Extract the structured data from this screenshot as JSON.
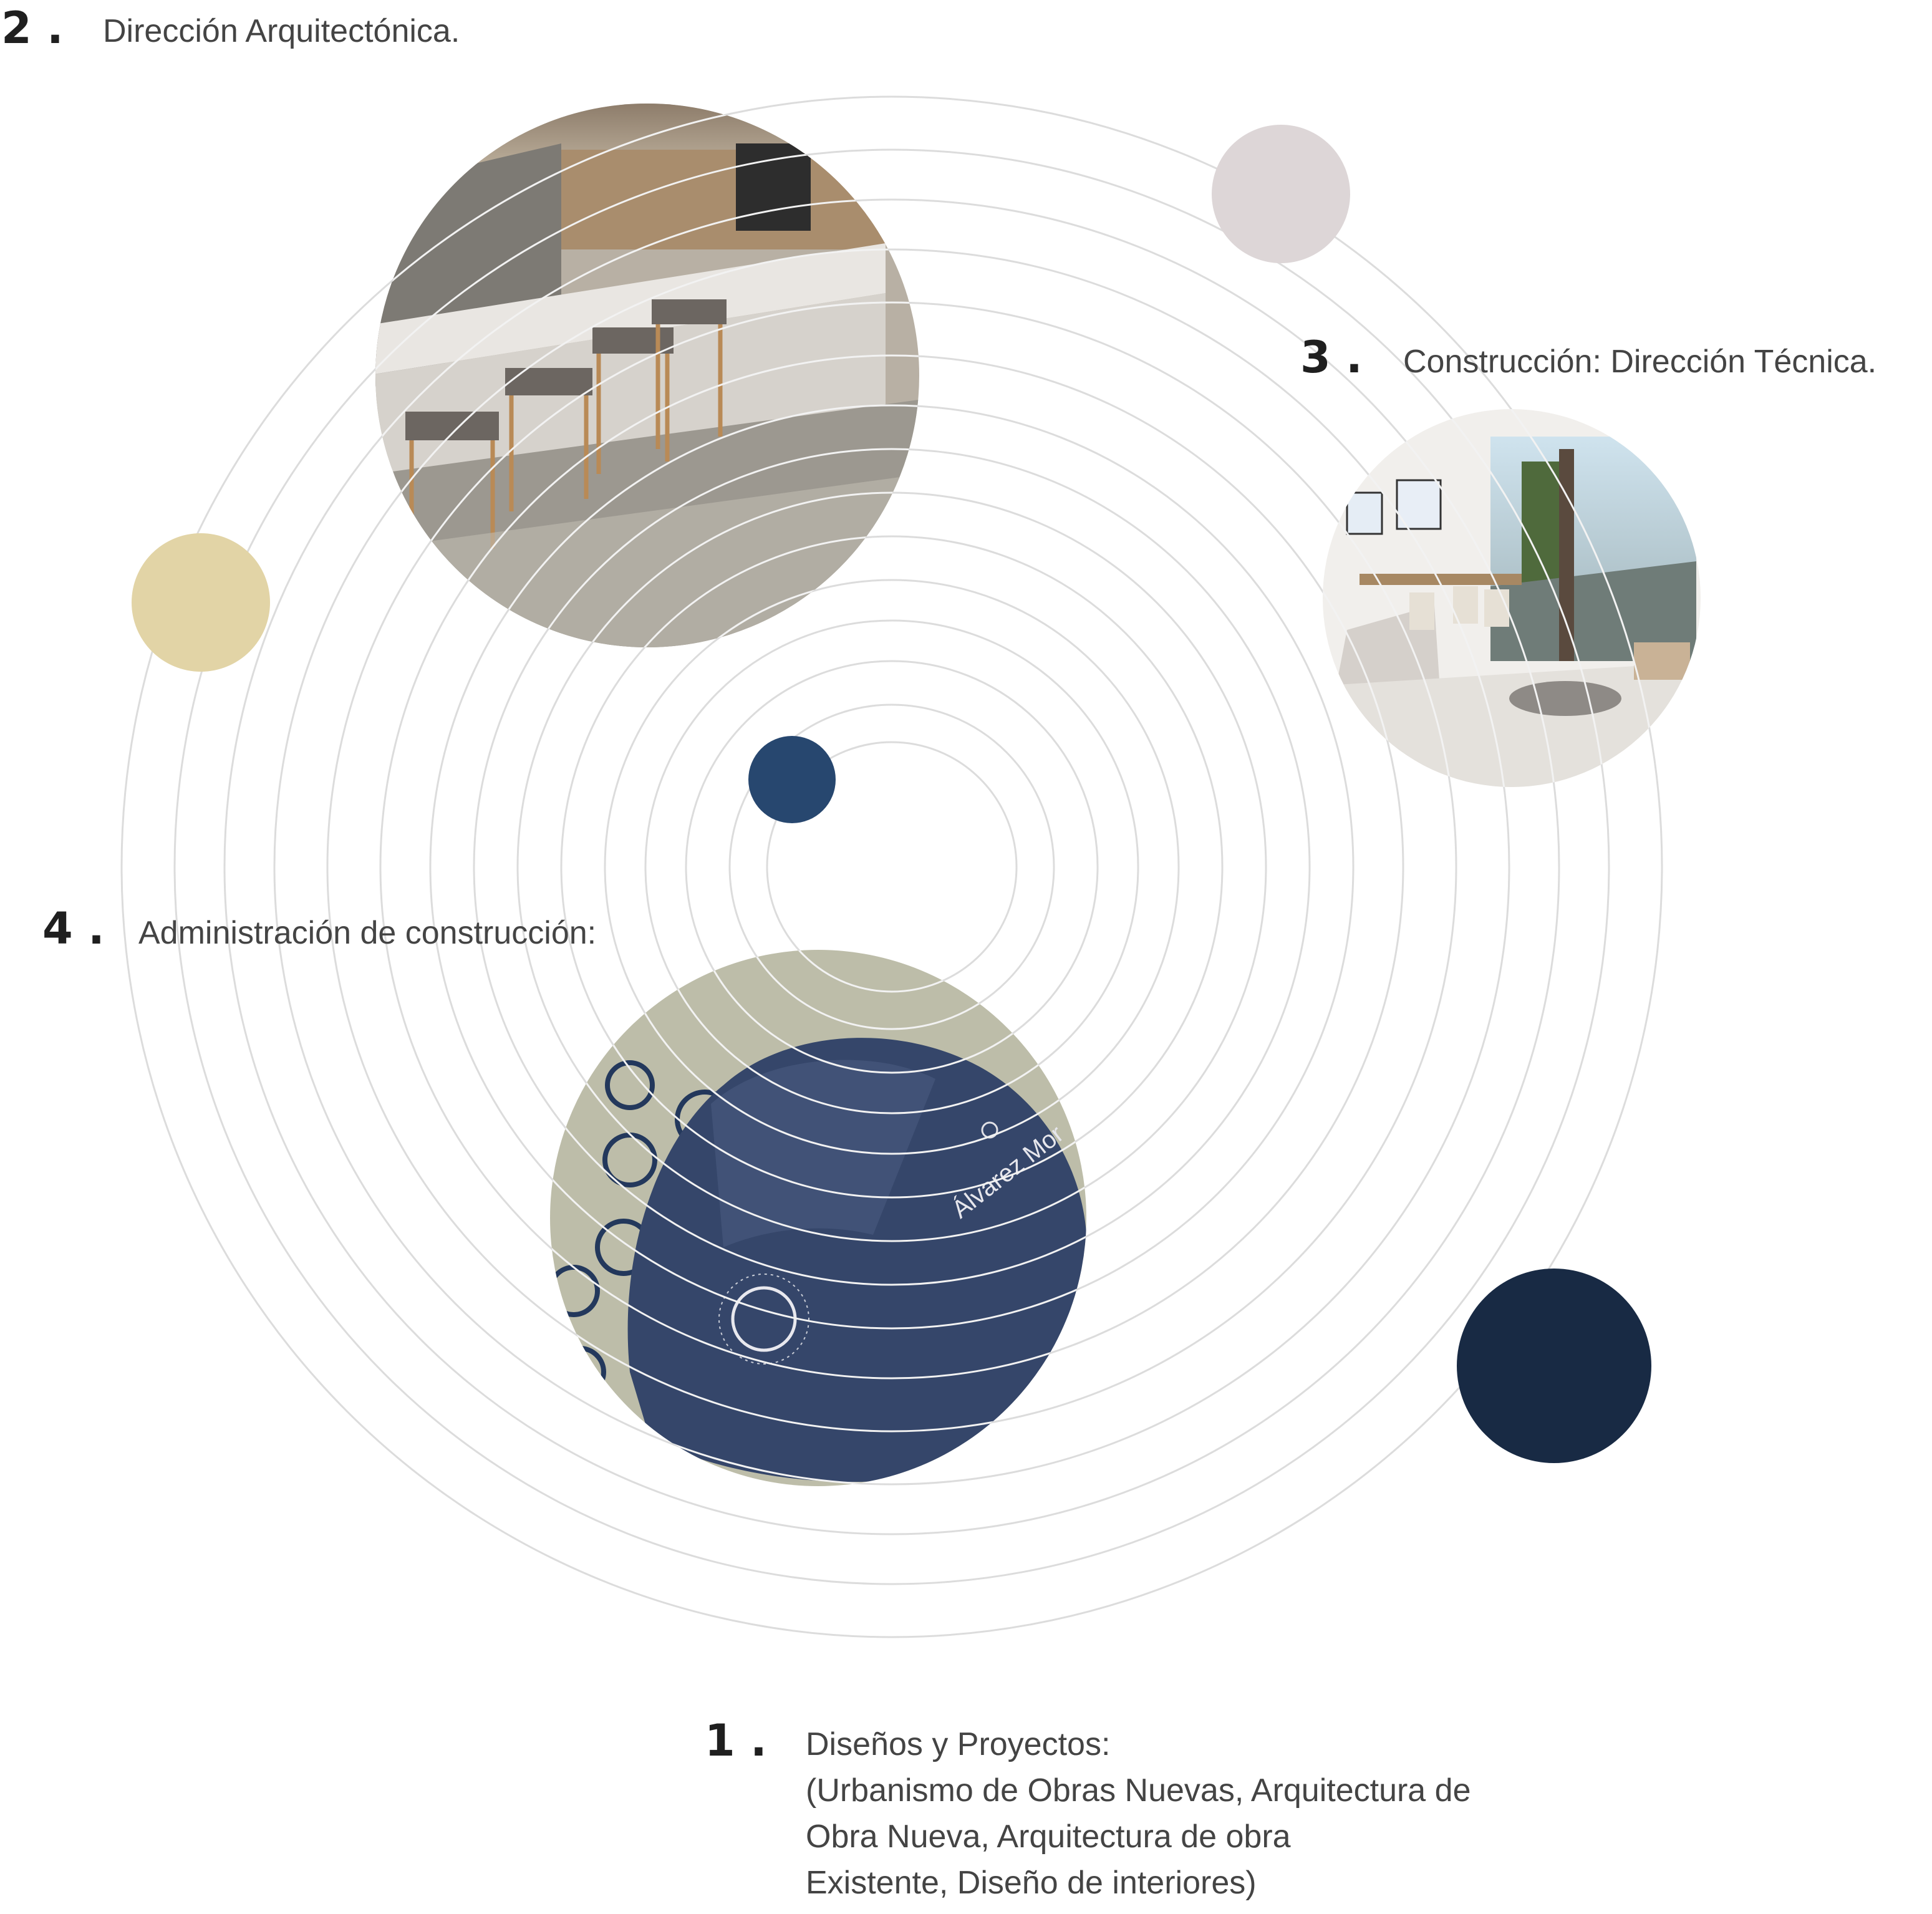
{
  "colors": {
    "background": "#ffffff",
    "ring": "#dcdcdc",
    "ring_over_photo": "#f2f2f2",
    "beige_dot": "#e2d4a6",
    "mauve_dot": "#ddd6d7",
    "blue_dot": "#27476f",
    "navy_dot": "#182a44",
    "helmet_bg": "#bdbda9",
    "helmet": "#35466a"
  },
  "items": [
    {
      "number": "2 .",
      "title": "Dirección Arquitectónica.",
      "photo": "bar-terrace-render"
    },
    {
      "number": "3 .",
      "title": "Construcción: Dirección Técnica.",
      "photo": "dining-room-render"
    },
    {
      "number": "4 .",
      "title": "Administración de construcción:",
      "photo": "helmet-logo"
    },
    {
      "number": "1 .",
      "title": "Diseños y Proyectos:",
      "detail_lines": [
        "(Urbanismo de Obras Nuevas, Arquitectura de",
        "Obra Nueva, Arquitectura de obra",
        "Existente, Diseño de interiores)"
      ]
    }
  ]
}
